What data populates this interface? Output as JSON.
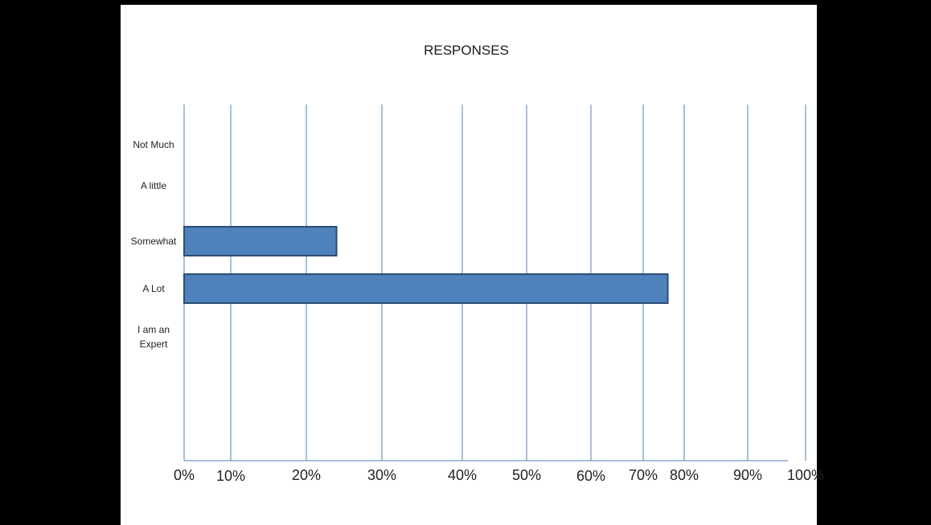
{
  "chart_data": {
    "type": "bar",
    "orientation": "horizontal",
    "title": "RESPONSES",
    "categories": [
      "Not Much",
      "A little",
      "Somewhat",
      "A Lot",
      "I am an Expert"
    ],
    "category_lines": [
      [
        "Not Much"
      ],
      [
        "A little"
      ],
      [
        "Somewhat"
      ],
      [
        "A Lot"
      ],
      [
        "I am an",
        "Expert"
      ]
    ],
    "values": [
      0,
      0,
      24,
      76,
      0
    ],
    "x_ticks": [
      "0%",
      "10%",
      "20%",
      "30%",
      "40%",
      "50%",
      "60%",
      "70%",
      "80%",
      "90%",
      "100%"
    ],
    "grid": true,
    "legend": "none",
    "colors": {
      "bar_fill": "#4f81bd",
      "bar_stroke": "#2c4d75",
      "grid": "#4f81bd"
    }
  }
}
